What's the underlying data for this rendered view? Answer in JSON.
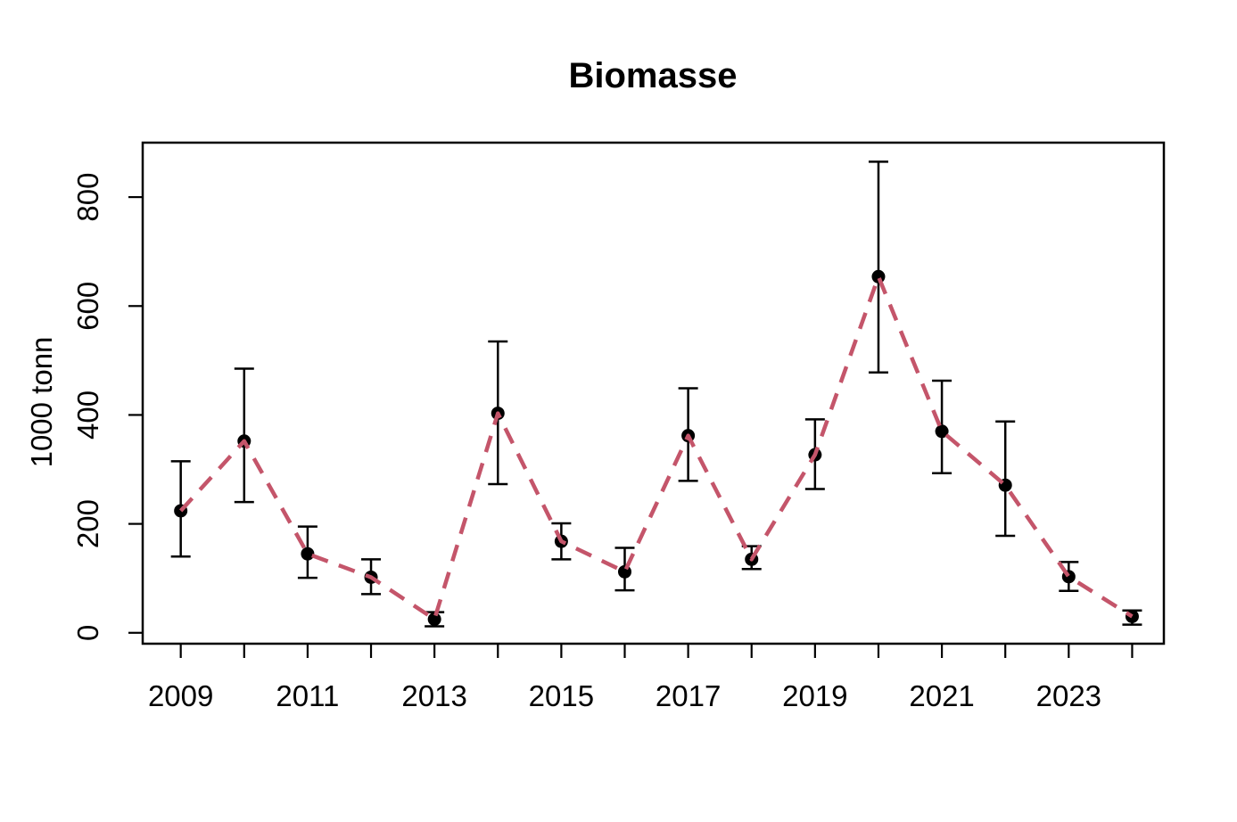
{
  "chart_data": {
    "type": "line",
    "title": "Biomasse",
    "xlabel": "",
    "ylabel": "1000 tonn",
    "legend": "none",
    "grid": false,
    "line_style": "dashed",
    "point_style": "filled-circle",
    "line_color": "#C4556A",
    "point_color": "#000000",
    "error_bar_color": "#000000",
    "axis_color": "#000000",
    "background_color": "#ffffff",
    "xlim": [
      2008.4,
      2024.5
    ],
    "ylim": [
      -20,
      900
    ],
    "y_ticks": [
      0,
      200,
      400,
      600,
      800
    ],
    "x_tick_years": [
      2009,
      2010,
      2011,
      2012,
      2013,
      2014,
      2015,
      2016,
      2017,
      2018,
      2019,
      2020,
      2021,
      2022,
      2023,
      2024
    ],
    "x_label_years": [
      2009,
      2011,
      2013,
      2015,
      2017,
      2019,
      2021,
      2023
    ],
    "years": [
      2009,
      2010,
      2011,
      2012,
      2013,
      2014,
      2015,
      2016,
      2017,
      2018,
      2019,
      2020,
      2021,
      2022,
      2023,
      2024
    ],
    "values": [
      224,
      352,
      145,
      102,
      25,
      403,
      168,
      112,
      362,
      135,
      327,
      654,
      370,
      271,
      103,
      30
    ],
    "ci_lower": [
      140,
      240,
      101,
      71,
      12,
      273,
      135,
      78,
      279,
      117,
      264,
      478,
      293,
      178,
      77,
      15
    ],
    "ci_upper": [
      315,
      485,
      195,
      135,
      38,
      535,
      201,
      156,
      449,
      159,
      392,
      865,
      463,
      388,
      130,
      41
    ]
  }
}
